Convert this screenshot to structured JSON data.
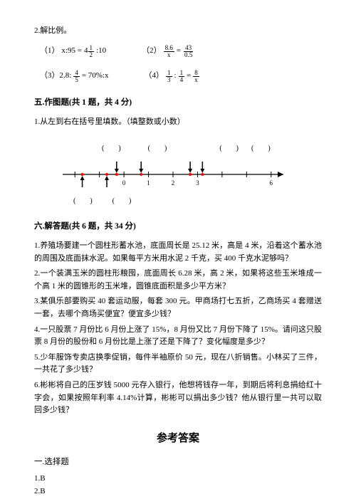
{
  "intro": {
    "q2": "2.解比例。"
  },
  "equations": {
    "e1_prefix": "（1）",
    "e1_lhs": "x:95 = ",
    "e1_mixed_whole": "4",
    "e1_mixed_num": "1",
    "e1_mixed_den": "2",
    "e1_suffix": ":10",
    "e2_prefix": "（2）",
    "e2_lnum": "8.6",
    "e2_lden": "x",
    "e2_eq": " = ",
    "e2_rnum": "43",
    "e2_rden": "0.5",
    "e3_prefix": "（3）2.8:",
    "e3_lnum": "4",
    "e3_lden": "5",
    "e3_mid": " = 70%:x",
    "e4_prefix": "（4）",
    "e4_anum": "1",
    "e4_aden": "3",
    "e4_colon": ":",
    "e4_bnum": "1",
    "e4_bden": "4",
    "e4_eq": " = ",
    "e4_cnum": "8",
    "e4_cden": "x"
  },
  "section5": {
    "title": "五.作图题(共 1 题，共 4 分)",
    "q1": "1.从左到右在括号里填数。（填整数或小数）"
  },
  "numberline": {
    "ticks": [
      "0",
      "1",
      "2",
      "3",
      "6"
    ],
    "blank": "(　　)",
    "line_color": "#000000",
    "mark_color": "#ff0000",
    "start": -2.5,
    "end": 6.5,
    "marks_top": [
      -0.3,
      0.7,
      2.7,
      3.2
    ],
    "marks_bottom": [
      -1.7,
      -0.7
    ]
  },
  "section6": {
    "title": "六.解答题(共 6 题，共 34 分)",
    "q1": "1.养殖场要建一个圆柱形蓄水池，底面周长是 25.12 米，高是 4 米，沿着这个蓄水池的周围及底面抹水泥。如果每平方米用水泥 2 千克，买 400 千克水泥够吗？",
    "q2": "2.一个装满玉米的圆柱形粮囤，底面周长 6.28 米，高 2 米，如果将这些玉米堆成一个高 1 米的圆锥形的玉米堆，圆锥底面积是多少平方米？",
    "q3": "3.某俱乐部要购买 40 套运动服，每套 300 元。甲商场打七五折，乙商场买 4 套赠送一套，去哪个商场买便宜？便宜多少钱？",
    "q4": "4.一只股票 7 月份比 6 月份上涨了 15%，8 月份又比 7 月份下降了 15%。请问这只股票 8 月份的股份和 6 月份比是上涨了还是下降了？变化幅度是多少？",
    "q5": "5.少年服饰专卖店换季促销，每件半袖原价 50 元，现在八折销售。小林买了三件，一共花了多少钱？",
    "q6": "6.彬彬将自己的压岁钱 5000 元存入银行，他想将钱存一年，到期后将利息捐给红十字会，如果按照年利率 4.14%计算，彬彬可以捐出多少钱？他从银行里一共可以取回多少钱？"
  },
  "answers": {
    "title": "参考答案",
    "sec1": "一.选择题",
    "a1": "1.B",
    "a2": "2.B"
  }
}
